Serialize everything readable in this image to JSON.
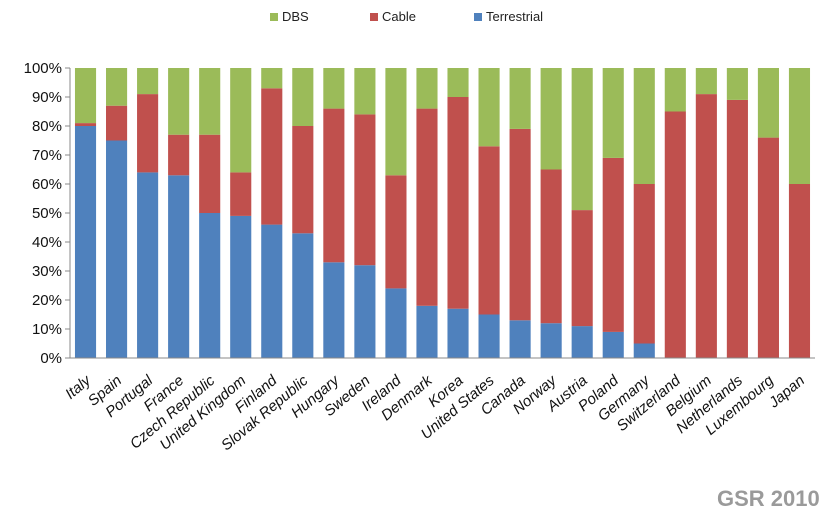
{
  "chart_data": {
    "type": "bar",
    "stacked": true,
    "percent_axis": true,
    "ylim": [
      0,
      100
    ],
    "yticks": [
      "0%",
      "10%",
      "20%",
      "30%",
      "40%",
      "50%",
      "60%",
      "70%",
      "80%",
      "90%",
      "100%"
    ],
    "categories": [
      "Italy",
      "Spain",
      "Portugal",
      "France",
      "Czech Republic",
      "United Kingdom",
      "Finland",
      "Slovak Republic",
      "Hungary",
      "Sweden",
      "Ireland",
      "Denmark",
      "Korea",
      "United States",
      "Canada",
      "Norway",
      "Austria",
      "Poland",
      "Germany",
      "Switzerland",
      "Belgium",
      "Netherlands",
      "Luxembourg",
      "Japan"
    ],
    "series": [
      {
        "name": "Terrestrial",
        "color": "#4F81BD",
        "values": [
          80,
          75,
          64,
          63,
          50,
          49,
          46,
          43,
          33,
          32,
          24,
          18,
          17,
          15,
          13,
          12,
          11,
          9,
          5,
          0,
          0,
          0,
          0,
          0
        ]
      },
      {
        "name": "Cable",
        "color": "#C0504D",
        "values": [
          1,
          12,
          27,
          14,
          27,
          15,
          47,
          37,
          53,
          52,
          39,
          68,
          73,
          58,
          66,
          53,
          40,
          60,
          55,
          85,
          91,
          89,
          76,
          60
        ]
      },
      {
        "name": "DBS",
        "color": "#9BBB59",
        "values": [
          19,
          13,
          9,
          23,
          23,
          36,
          7,
          20,
          14,
          16,
          37,
          14,
          10,
          27,
          21,
          35,
          49,
          31,
          40,
          15,
          9,
          11,
          24,
          40
        ]
      }
    ],
    "legend": {
      "position": "top-center",
      "order": [
        "DBS",
        "Cable",
        "Terrestrial"
      ]
    },
    "grid": false
  },
  "footer": {
    "watermark": "GSR 2010 -"
  }
}
